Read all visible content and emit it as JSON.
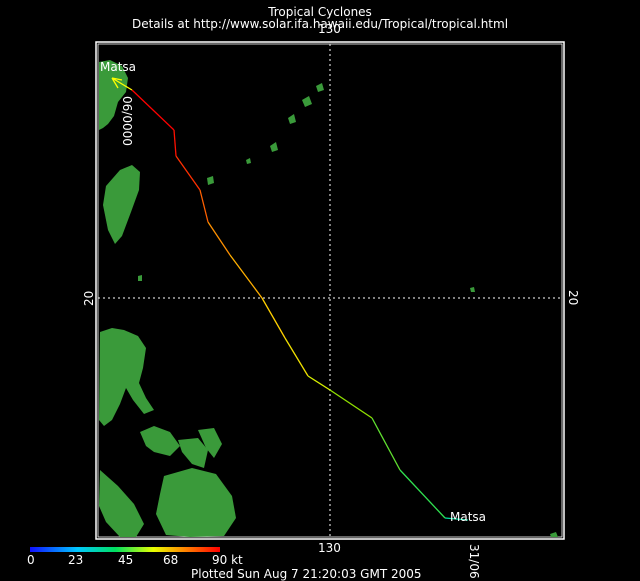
{
  "header": {
    "title": "Tropical Cyclones",
    "subtitle": "Details at http://www.solar.ifa.hawaii.edu/Tropical/tropical.html"
  },
  "map": {
    "grid": {
      "lon_label_top": "130",
      "lon_label_bottom": "130",
      "lat_label_left": "20",
      "lat_label_right": "20"
    },
    "storm": {
      "name": "Matsa",
      "start_label": "Matsa",
      "end_label": "Matsa",
      "start_date": "31/06",
      "end_date_time": "06/0000"
    },
    "colors": {
      "background": "#000000",
      "land": "#3a9a3a",
      "frame": "#ffffff",
      "grid": "#ffffff"
    }
  },
  "colorbar": {
    "unit": "kt",
    "ticks": [
      "0",
      "23",
      "45",
      "68",
      "90 kt"
    ]
  },
  "footer": "Plotted Sun Aug 7 21:20:03 GMT 2005"
}
